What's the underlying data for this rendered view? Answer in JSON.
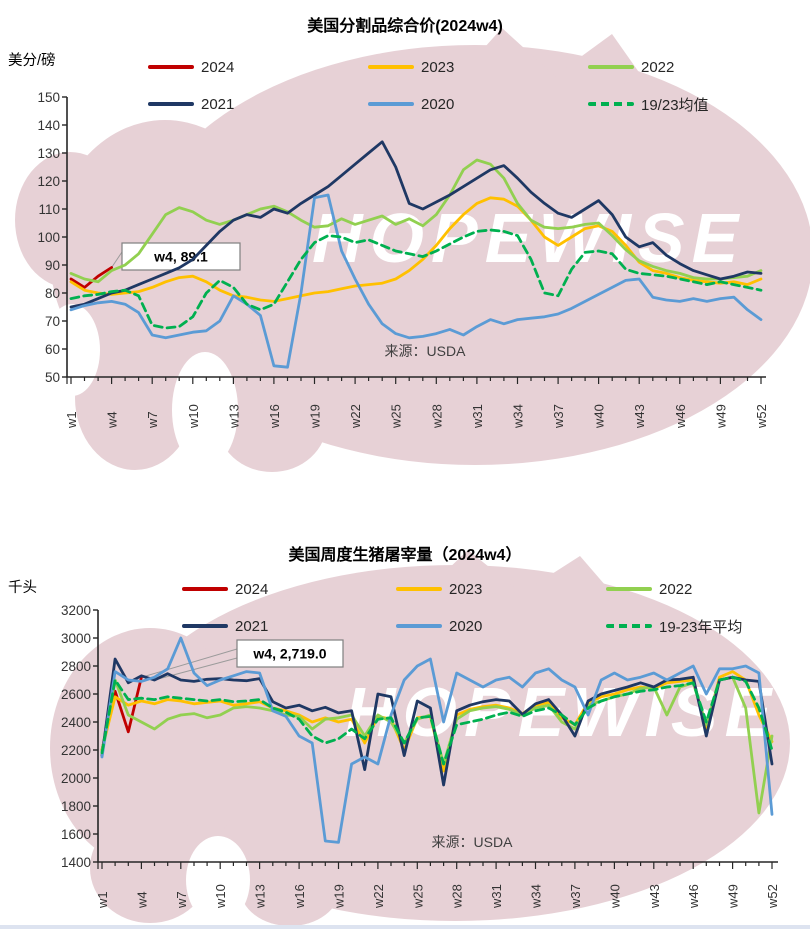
{
  "watermark": {
    "text": "HOPEWISE",
    "shape_color": "#e7d1d6",
    "text_color": "#ffffff"
  },
  "charts": [
    {
      "id": "cutout-price",
      "title": "美国分割品综合价(2024w4)",
      "unit": "美分/磅",
      "source": "来源：USDA",
      "annotation": {
        "label": "w4, 89.1",
        "targets": [
          [
            4,
            89.1
          ]
        ]
      },
      "legend": [
        {
          "key": "y2024",
          "label": "2024",
          "color": "#C00000",
          "dash": false
        },
        {
          "key": "y2023",
          "label": "2023",
          "color": "#FFC000",
          "dash": false
        },
        {
          "key": "y2022",
          "label": "2022",
          "color": "#92D050",
          "dash": false
        },
        {
          "key": "y2021",
          "label": "2021",
          "color": "#1F3864",
          "dash": false
        },
        {
          "key": "y2020",
          "label": "2020",
          "color": "#5B9BD5",
          "dash": false
        },
        {
          "key": "avg",
          "label": "19/23均值",
          "color": "#00B050",
          "dash": true
        }
      ],
      "chart_data": {
        "type": "line",
        "x_range": [
          1,
          52
        ],
        "x_tick_labels": [
          "w1",
          "w4",
          "w7",
          "w10",
          "w13",
          "w16",
          "w19",
          "w22",
          "w25",
          "w28",
          "w31",
          "w34",
          "w37",
          "w40",
          "w43",
          "w46",
          "w49",
          "w52"
        ],
        "ylim": [
          50,
          150
        ],
        "y_ticks": [
          150,
          140,
          130,
          120,
          110,
          100,
          90,
          80,
          70,
          60,
          50
        ],
        "series": [
          {
            "key": "y2024",
            "name": "2024",
            "color": "#C00000",
            "dash": false,
            "values": [
              85,
              82,
              86,
              89.1
            ]
          },
          {
            "key": "y2023",
            "name": "2023",
            "color": "#FFC000",
            "dash": false,
            "values": [
              84,
              81,
              80,
              79.5,
              80,
              80.5,
              82,
              84,
              85.5,
              86,
              84,
              81,
              79,
              78.5,
              77.5,
              77,
              78,
              79,
              80,
              80.5,
              81.5,
              82.5,
              83,
              83.5,
              85,
              88,
              92,
              97,
              103,
              108,
              112,
              114,
              113.5,
              111,
              106,
              100,
              97,
              100,
              103,
              104,
              102,
              97,
              91,
              88,
              87,
              85.5,
              84.5,
              84,
              83.5,
              84,
              83,
              85
            ]
          },
          {
            "key": "y2022",
            "name": "2022",
            "color": "#92D050",
            "dash": false,
            "values": [
              87,
              85,
              84,
              88,
              90,
              94,
              101,
              108,
              110.5,
              109,
              106,
              104.5,
              106,
              108,
              110,
              111,
              109,
              106,
              103.5,
              104,
              106.5,
              104.5,
              106,
              107.5,
              104.5,
              106.5,
              104,
              108,
              115,
              124,
              127.5,
              126,
              121,
              112,
              106,
              103.5,
              103,
              103.5,
              104.5,
              105,
              100.5,
              95.5,
              91.5,
              89.5,
              88,
              87,
              85.5,
              85,
              85,
              85.5,
              86,
              88
            ]
          },
          {
            "key": "y2021",
            "name": "2021",
            "color": "#1F3864",
            "dash": false,
            "values": [
              75,
              76,
              78,
              80,
              81,
              83,
              85,
              87,
              89,
              92,
              97,
              102,
              106,
              108,
              107,
              110,
              108.5,
              112,
              115,
              118,
              122,
              126,
              130,
              134,
              125,
              112,
              110,
              112.5,
              115,
              118,
              121,
              124,
              125.5,
              121,
              116,
              112,
              108.5,
              107,
              110,
              113,
              108,
              100,
              96.5,
              98,
              93.5,
              90.5,
              88,
              86.5,
              85,
              86,
              87.5,
              87
            ]
          },
          {
            "key": "y2020",
            "name": "2020",
            "color": "#5B9BD5",
            "dash": false,
            "values": [
              74,
              75.5,
              76.5,
              77,
              76,
              73,
              65,
              64,
              65,
              66,
              66.5,
              70,
              79,
              76,
              72,
              54,
              53.5,
              80,
              114,
              115,
              95,
              85,
              76,
              69,
              65.5,
              64,
              64.5,
              65.5,
              67,
              65,
              68,
              70.5,
              69,
              70.5,
              71,
              71.5,
              72.5,
              74.5,
              77,
              79.5,
              82,
              84.5,
              85,
              78.5,
              77.5,
              77,
              78,
              77,
              78,
              78.5,
              74,
              70.5
            ]
          },
          {
            "key": "avg",
            "name": "19/23均值",
            "color": "#00B050",
            "dash": true,
            "values": [
              78,
              79,
              79.5,
              80.5,
              81,
              79,
              68.5,
              67.5,
              68,
              71.5,
              80,
              84.5,
              82,
              76,
              74,
              76,
              84,
              92,
              98,
              100.5,
              100,
              98,
              99,
              97,
              95,
              94,
              93,
              95,
              97.5,
              100,
              102,
              102.5,
              102,
              100.5,
              92,
              80,
              79,
              88.5,
              94.5,
              95,
              94,
              88.5,
              87,
              86.5,
              86,
              85,
              84,
              83,
              84,
              83,
              82,
              81
            ]
          }
        ]
      }
    },
    {
      "id": "hog-slaughter",
      "title": "美国周度生猪屠宰量（2024w4）",
      "unit": "千头",
      "source": "来源：USDA",
      "annotation": {
        "label": "w4, 2,719.0",
        "targets": [
          [
            4,
            2719
          ],
          [
            5,
            2700
          ]
        ]
      },
      "legend": [
        {
          "key": "y2024",
          "label": "2024",
          "color": "#C00000",
          "dash": false
        },
        {
          "key": "y2023",
          "label": "2023",
          "color": "#FFC000",
          "dash": false
        },
        {
          "key": "y2022",
          "label": "2022",
          "color": "#92D050",
          "dash": false
        },
        {
          "key": "y2021",
          "label": "2021",
          "color": "#1F3864",
          "dash": false
        },
        {
          "key": "y2020",
          "label": "2020",
          "color": "#5B9BD5",
          "dash": false
        },
        {
          "key": "avg",
          "label": "19-23年平均",
          "color": "#00B050",
          "dash": true
        }
      ],
      "chart_data": {
        "type": "line",
        "x_range": [
          1,
          52
        ],
        "x_tick_labels": [
          "w1",
          "w4",
          "w7",
          "w10",
          "w13",
          "w16",
          "w19",
          "w22",
          "w25",
          "w28",
          "w31",
          "w34",
          "w37",
          "w40",
          "w43",
          "w46",
          "w49",
          "w52"
        ],
        "ylim": [
          1400,
          3200
        ],
        "y_ticks": [
          3200,
          3000,
          2800,
          2600,
          2400,
          2200,
          2000,
          1800,
          1600,
          1400
        ],
        "series": [
          {
            "key": "y2024",
            "name": "2024",
            "color": "#C00000",
            "dash": false,
            "values": [
              2200,
              2620,
              2330,
              2719
            ]
          },
          {
            "key": "y2023",
            "name": "2023",
            "color": "#FFC000",
            "dash": false,
            "values": [
              2200,
              2580,
              2520,
              2550,
              2530,
              2560,
              2550,
              2530,
              2540,
              2550,
              2520,
              2530,
              2545,
              2500,
              2480,
              2450,
              2400,
              2430,
              2400,
              2420,
              2250,
              2440,
              2420,
              2200,
              2430,
              2440,
              2050,
              2450,
              2490,
              2510,
              2520,
              2500,
              2460,
              2520,
              2540,
              2430,
              2380,
              2540,
              2580,
              2600,
              2630,
              2650,
              2640,
              2680,
              2690,
              2700,
              2350,
              2720,
              2760,
              2700,
              2450,
              2260
            ]
          },
          {
            "key": "y2022",
            "name": "2022",
            "color": "#92D050",
            "dash": false,
            "values": [
              2190,
              2700,
              2450,
              2400,
              2350,
              2420,
              2450,
              2460,
              2430,
              2450,
              2500,
              2510,
              2500,
              2480,
              2450,
              2440,
              2350,
              2420,
              2430,
              2450,
              2300,
              2450,
              2400,
              2250,
              2420,
              2450,
              2100,
              2420,
              2480,
              2500,
              2510,
              2490,
              2450,
              2500,
              2520,
              2400,
              2350,
              2520,
              2550,
              2580,
              2600,
              2640,
              2650,
              2450,
              2650,
              2680,
              2380,
              2700,
              2720,
              2500,
              1750,
              2300
            ]
          },
          {
            "key": "y2021",
            "name": "2021",
            "color": "#1F3864",
            "dash": false,
            "values": [
              2160,
              2850,
              2680,
              2730,
              2700,
              2745,
              2700,
              2690,
              2705,
              2710,
              2700,
              2695,
              2710,
              2545,
              2500,
              2520,
              2480,
              2505,
              2465,
              2480,
              2060,
              2600,
              2580,
              2160,
              2550,
              2500,
              1950,
              2480,
              2520,
              2545,
              2560,
              2550,
              2455,
              2530,
              2560,
              2450,
              2300,
              2550,
              2600,
              2625,
              2650,
              2680,
              2650,
              2700,
              2705,
              2720,
              2300,
              2700,
              2720,
              2700,
              2690,
              2100
            ]
          },
          {
            "key": "y2020",
            "name": "2020",
            "color": "#5B9BD5",
            "dash": false,
            "values": [
              2150,
              2760,
              2700,
              2690,
              2720,
              2780,
              3000,
              2750,
              2660,
              2700,
              2730,
              2760,
              2750,
              2480,
              2440,
              2300,
              2250,
              1550,
              1540,
              2100,
              2150,
              2100,
              2450,
              2700,
              2800,
              2850,
              2400,
              2750,
              2700,
              2650,
              2700,
              2720,
              2650,
              2750,
              2780,
              2700,
              2650,
              2450,
              2700,
              2750,
              2700,
              2720,
              2750,
              2700,
              2750,
              2800,
              2600,
              2780,
              2780,
              2800,
              2750,
              1740
            ]
          },
          {
            "key": "avg",
            "name": "19-23年平均",
            "color": "#00B050",
            "dash": true,
            "values": [
              2180,
              2700,
              2560,
              2570,
              2560,
              2580,
              2570,
              2560,
              2550,
              2560,
              2545,
              2550,
              2560,
              2500,
              2470,
              2420,
              2300,
              2250,
              2280,
              2350,
              2280,
              2420,
              2430,
              2250,
              2430,
              2440,
              2100,
              2380,
              2400,
              2420,
              2450,
              2470,
              2440,
              2480,
              2500,
              2450,
              2380,
              2500,
              2550,
              2580,
              2600,
              2620,
              2630,
              2650,
              2660,
              2680,
              2400,
              2700,
              2720,
              2690,
              2500,
              2200
            ]
          }
        ]
      }
    }
  ]
}
